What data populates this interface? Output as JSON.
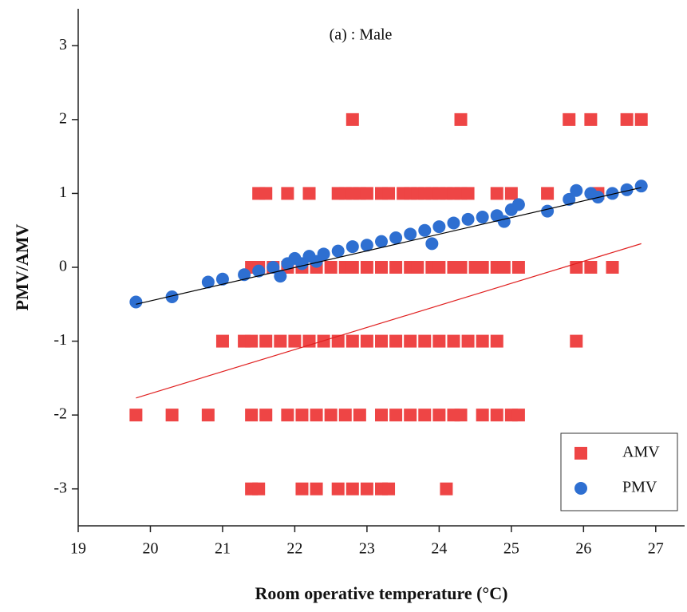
{
  "chart_data": {
    "type": "scatter",
    "annotation": "(a) : Male",
    "xlabel": "Room operative temperature (°C)",
    "ylabel": "PMV/AMV",
    "xlim": [
      19,
      27.4
    ],
    "ylim": [
      -3.5,
      3.5
    ],
    "xticks": [
      19,
      20,
      21,
      22,
      23,
      24,
      25,
      26,
      27
    ],
    "yticks": [
      -3,
      -2,
      -1,
      0,
      1,
      2,
      3
    ],
    "legend": "lower right",
    "series": [
      {
        "name": "AMV",
        "color": "#ee4545",
        "marker": "square",
        "x": [
          22.8,
          24.3,
          25.8,
          26.1,
          26.6,
          26.8,
          21.5,
          21.6,
          21.9,
          22.2,
          22.6,
          22.7,
          22.8,
          22.9,
          23.0,
          23.2,
          23.3,
          23.5,
          23.6,
          23.7,
          23.8,
          23.9,
          24.0,
          24.1,
          24.2,
          24.3,
          24.4,
          24.8,
          25.0,
          25.5,
          26.2,
          21.4,
          21.5,
          21.7,
          21.9,
          22.1,
          22.3,
          22.5,
          22.7,
          22.8,
          23.0,
          23.2,
          23.4,
          23.6,
          23.7,
          23.9,
          24.0,
          24.2,
          24.3,
          24.5,
          24.6,
          24.8,
          24.9,
          25.1,
          25.9,
          26.1,
          26.4,
          21.0,
          21.3,
          21.4,
          21.6,
          21.8,
          22.0,
          22.2,
          22.4,
          22.6,
          22.8,
          23.0,
          23.2,
          23.4,
          23.6,
          23.8,
          24.0,
          24.2,
          24.4,
          24.6,
          24.8,
          25.9,
          19.8,
          20.3,
          20.8,
          21.4,
          21.6,
          21.9,
          22.1,
          22.3,
          22.5,
          22.7,
          22.9,
          23.2,
          23.4,
          23.6,
          23.8,
          24.0,
          24.2,
          24.3,
          24.6,
          24.8,
          25.0,
          25.1,
          21.4,
          21.5,
          22.1,
          22.3,
          22.6,
          22.8,
          23.0,
          23.2,
          23.3,
          24.1
        ],
        "y": [
          2,
          2,
          2,
          2,
          2,
          2,
          1,
          1,
          1,
          1,
          1,
          1,
          1,
          1,
          1,
          1,
          1,
          1,
          1,
          1,
          1,
          1,
          1,
          1,
          1,
          1,
          1,
          1,
          1,
          1,
          1,
          0,
          0,
          0,
          0,
          0,
          0,
          0,
          0,
          0,
          0,
          0,
          0,
          0,
          0,
          0,
          0,
          0,
          0,
          0,
          0,
          0,
          0,
          0,
          0,
          0,
          0,
          -1,
          -1,
          -1,
          -1,
          -1,
          -1,
          -1,
          -1,
          -1,
          -1,
          -1,
          -1,
          -1,
          -1,
          -1,
          -1,
          -1,
          -1,
          -1,
          -1,
          -1,
          -2,
          -2,
          -2,
          -2,
          -2,
          -2,
          -2,
          -2,
          -2,
          -2,
          -2,
          -2,
          -2,
          -2,
          -2,
          -2,
          -2,
          -2,
          -2,
          -2,
          -2,
          -2,
          -3,
          -3,
          -3,
          -3,
          -3,
          -3,
          -3,
          -3,
          -3,
          -3
        ]
      },
      {
        "name": "PMV",
        "color": "#2e6fd1",
        "marker": "circle",
        "x": [
          19.8,
          20.3,
          20.8,
          21.0,
          21.3,
          21.5,
          21.7,
          21.8,
          21.9,
          22.0,
          22.1,
          22.2,
          22.3,
          22.4,
          22.6,
          22.8,
          23.0,
          23.2,
          23.4,
          23.6,
          23.8,
          23.9,
          24.0,
          24.2,
          24.4,
          24.6,
          24.8,
          24.9,
          25.0,
          25.1,
          25.5,
          25.8,
          25.9,
          26.1,
          26.2,
          26.4,
          26.6,
          26.8
        ],
        "y": [
          -0.47,
          -0.4,
          -0.2,
          -0.16,
          -0.1,
          -0.05,
          0.0,
          -0.12,
          0.05,
          0.12,
          0.05,
          0.15,
          0.08,
          0.18,
          0.22,
          0.28,
          0.3,
          0.35,
          0.4,
          0.45,
          0.5,
          0.32,
          0.55,
          0.6,
          0.65,
          0.68,
          0.7,
          0.62,
          0.78,
          0.85,
          0.76,
          0.92,
          1.04,
          1.0,
          0.95,
          1.0,
          1.05,
          1.1
        ]
      }
    ],
    "trend_lines": [
      {
        "color": "#000000",
        "x": [
          19.8,
          26.8
        ],
        "y": [
          -0.5,
          1.08
        ]
      },
      {
        "color": "#e02020",
        "x": [
          19.8,
          26.8
        ],
        "y": [
          -1.77,
          0.32
        ]
      }
    ]
  }
}
